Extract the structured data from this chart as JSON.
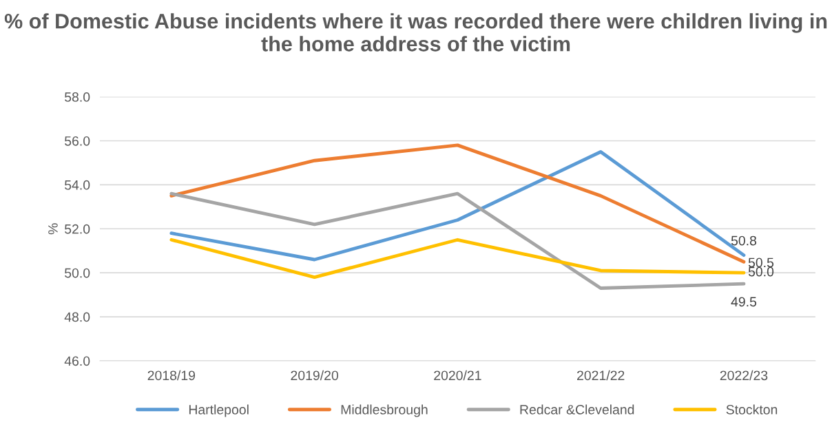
{
  "chart_data": {
    "type": "line",
    "title": "% of Domestic Abuse incidents where it was recorded there were children living in the home address of the victim",
    "ylabel": "%",
    "categories": [
      "2018/19",
      "2019/20",
      "2020/21",
      "2021/22",
      "2022/23"
    ],
    "series": [
      {
        "name": "Hartlepool",
        "color": "#5b9bd5",
        "values": [
          51.8,
          50.6,
          52.4,
          55.5,
          50.8
        ],
        "value_labels": [
          null,
          null,
          null,
          null,
          "50.8"
        ]
      },
      {
        "name": "Middlesbrough",
        "color": "#ed7d31",
        "values": [
          53.5,
          55.1,
          55.8,
          53.5,
          50.5
        ],
        "value_labels": [
          null,
          null,
          null,
          null,
          "50.5"
        ]
      },
      {
        "name": "Redcar &Cleveland",
        "color": "#a5a5a5",
        "values": [
          53.6,
          52.2,
          53.6,
          49.3,
          49.5
        ],
        "value_labels": [
          null,
          null,
          null,
          null,
          "49.5"
        ]
      },
      {
        "name": "Stockton",
        "color": "#ffc000",
        "values": [
          51.5,
          49.8,
          51.5,
          50.1,
          50.0
        ],
        "value_labels": [
          null,
          null,
          null,
          null,
          "50.0"
        ]
      }
    ],
    "ylim": [
      46,
      58
    ],
    "yticks": [
      {
        "value": 46,
        "label": "46.0"
      },
      {
        "value": 48,
        "label": "48.0"
      },
      {
        "value": 50,
        "label": "50.0"
      },
      {
        "value": 52,
        "label": "52.0"
      },
      {
        "value": 54,
        "label": "54.0"
      },
      {
        "value": 56,
        "label": "56.0"
      },
      {
        "value": 58,
        "label": "58.0"
      }
    ],
    "grid": "y",
    "legend": "bottom",
    "marker": "none",
    "line_style": "solid"
  }
}
